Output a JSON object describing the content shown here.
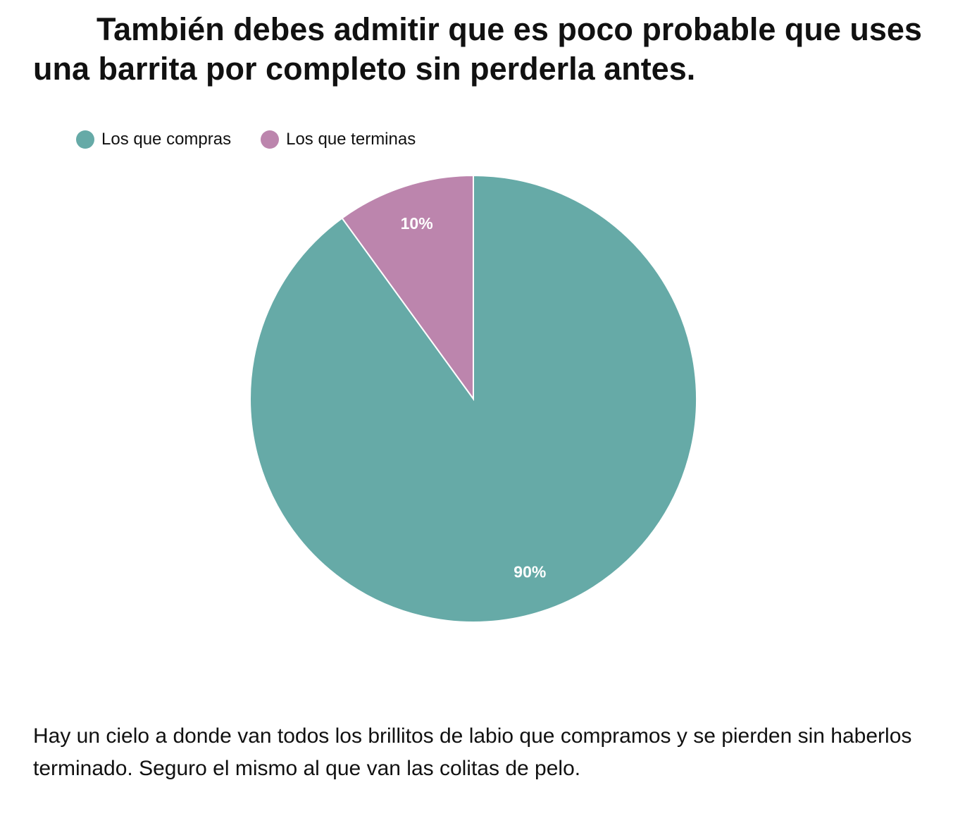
{
  "heading": "También debes admitir que es poco probable que uses una barrita por completo sin perderla antes.",
  "body_text": "Hay un cielo a donde van todos los brillitos de labio que compramos y se pierden sin haberlos terminado. Seguro el mismo al que van las colitas de pelo.",
  "chart_data": {
    "type": "pie",
    "title": "",
    "legend_position": "top-left",
    "slices": [
      {
        "name": "Los que compras",
        "value": 90,
        "label": "90%",
        "color": "#66aaa7"
      },
      {
        "name": "Los que terminas",
        "value": 10,
        "label": "10%",
        "color": "#bc85ad"
      }
    ]
  }
}
